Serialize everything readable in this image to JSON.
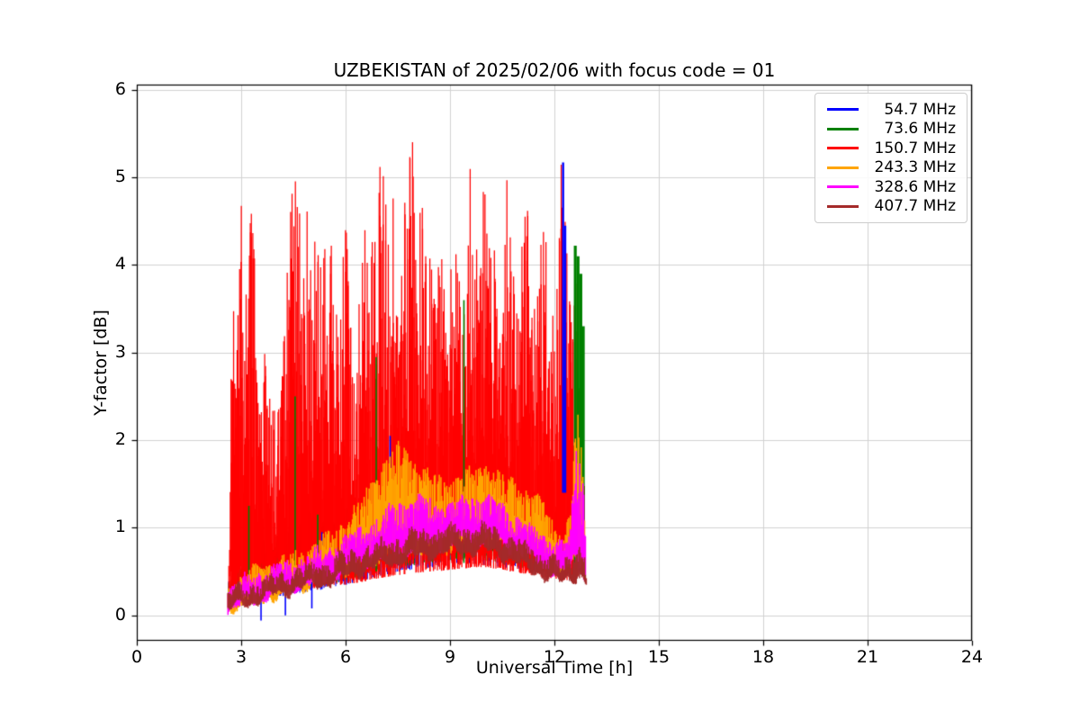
{
  "chart_data": {
    "type": "line",
    "title": "UZBEKISTAN of 2025/02/06 with focus code = 01",
    "xlabel": "Universal Time [h]",
    "ylabel": "Y-factor [dB]",
    "xlim": [
      0,
      24
    ],
    "ylim": [
      -0.29,
      6.06
    ],
    "xtick_values": [
      0,
      3,
      6,
      9,
      12,
      15,
      18,
      21,
      24
    ],
    "xtick_labels": [
      "0",
      "3",
      "6",
      "9",
      "12",
      "15",
      "18",
      "21",
      "24"
    ],
    "ytick_values": [
      0,
      1,
      2,
      3,
      4,
      5,
      6
    ],
    "ytick_labels": [
      "0",
      "1",
      "2",
      "3",
      "4",
      "5",
      "6"
    ],
    "grid": true,
    "grid_color": "#d2d2d2",
    "legend_position": "upper right",
    "signal_time_range_h": [
      2.65,
      12.9
    ],
    "series": [
      {
        "name": "54.7 MHz",
        "color": "#0000ff",
        "style": "mass",
        "envelope": [
          [
            2.65,
            0.08,
            0.4
          ],
          [
            3.5,
            0.15,
            0.7
          ],
          [
            4.5,
            0.25,
            1.0
          ],
          [
            5.5,
            0.3,
            1.1
          ],
          [
            6.5,
            0.4,
            1.3
          ],
          [
            7.5,
            0.5,
            1.45
          ],
          [
            8.5,
            0.55,
            1.5
          ],
          [
            9.5,
            0.6,
            1.5
          ],
          [
            10.5,
            0.55,
            1.4
          ],
          [
            11.5,
            0.5,
            1.2
          ],
          [
            12.3,
            0.45,
            1.1
          ],
          [
            12.85,
            0.5,
            1.5
          ]
        ],
        "visible_spikes": [
          [
            3.57,
            -0.06,
            0.38
          ],
          [
            4.27,
            0.0,
            0.5
          ],
          [
            5.03,
            0.08,
            0.62
          ],
          [
            5.32,
            0.3,
            0.95
          ],
          [
            7.28,
            1.6,
            2.05
          ],
          [
            12.25,
            1.4,
            5.17
          ],
          [
            12.31,
            1.4,
            4.45
          ]
        ]
      },
      {
        "name": "73.6 MHz",
        "color": "#008000",
        "style": "mass",
        "envelope": [
          [
            2.65,
            0.1,
            0.5
          ],
          [
            3.5,
            0.2,
            0.85
          ],
          [
            4.5,
            0.3,
            1.15
          ],
          [
            5.5,
            0.35,
            1.25
          ],
          [
            6.5,
            0.45,
            1.45
          ],
          [
            7.5,
            0.55,
            1.55
          ],
          [
            8.5,
            0.6,
            1.6
          ],
          [
            9.5,
            0.65,
            1.55
          ],
          [
            10.5,
            0.6,
            1.45
          ],
          [
            11.5,
            0.5,
            1.3
          ],
          [
            12.3,
            0.45,
            1.2
          ],
          [
            12.85,
            0.5,
            1.7
          ]
        ],
        "visible_spikes": [
          [
            3.22,
            0.3,
            1.25
          ],
          [
            4.55,
            0.4,
            2.5
          ],
          [
            5.2,
            0.35,
            1.15
          ],
          [
            6.88,
            0.5,
            2.95
          ],
          [
            9.4,
            0.6,
            3.6
          ],
          [
            12.6,
            0.55,
            4.22
          ],
          [
            12.68,
            0.55,
            4.1
          ],
          [
            12.76,
            0.5,
            3.9
          ],
          [
            12.83,
            0.5,
            3.3
          ]
        ]
      },
      {
        "name": "150.7 MHz",
        "color": "#ff0000",
        "style": "mass-dense",
        "envelope": [
          [
            2.65,
            0.08,
            0.6
          ],
          [
            2.72,
            0.1,
            3.95
          ],
          [
            2.85,
            0.1,
            2.9
          ],
          [
            3.0,
            0.12,
            4.95
          ],
          [
            3.15,
            0.13,
            4.3
          ],
          [
            3.3,
            0.15,
            4.9
          ],
          [
            3.45,
            0.17,
            3.6
          ],
          [
            3.6,
            0.18,
            2.7
          ],
          [
            3.75,
            0.2,
            3.45
          ],
          [
            3.9,
            0.22,
            2.35
          ],
          [
            4.1,
            0.24,
            2.4
          ],
          [
            4.25,
            0.26,
            3.6
          ],
          [
            4.4,
            0.27,
            4.65
          ],
          [
            4.55,
            0.28,
            5.3
          ],
          [
            4.7,
            0.29,
            4.6
          ],
          [
            4.85,
            0.3,
            5.05
          ],
          [
            5.0,
            0.3,
            4.45
          ],
          [
            5.1,
            0.31,
            5.25
          ],
          [
            5.25,
            0.32,
            4.2
          ],
          [
            5.4,
            0.33,
            4.8
          ],
          [
            5.55,
            0.34,
            4.5
          ],
          [
            5.7,
            0.34,
            3.1
          ],
          [
            5.85,
            0.35,
            4.2
          ],
          [
            6.0,
            0.35,
            4.85
          ],
          [
            6.15,
            0.36,
            3.4
          ],
          [
            6.3,
            0.37,
            2.6
          ],
          [
            6.45,
            0.38,
            4.3
          ],
          [
            6.6,
            0.39,
            4.9
          ],
          [
            6.75,
            0.41,
            4.4
          ],
          [
            6.9,
            0.42,
            4.6
          ],
          [
            7.05,
            0.43,
            5.6
          ],
          [
            7.2,
            0.44,
            4.4
          ],
          [
            7.35,
            0.45,
            4.95
          ],
          [
            7.5,
            0.46,
            4.4
          ],
          [
            7.65,
            0.47,
            4.55
          ],
          [
            7.9,
            0.48,
            5.77
          ],
          [
            8.0,
            0.48,
            4.6
          ],
          [
            8.15,
            0.49,
            5.05
          ],
          [
            8.3,
            0.5,
            4.4
          ],
          [
            8.45,
            0.5,
            4.2
          ],
          [
            8.6,
            0.51,
            3.6
          ],
          [
            8.75,
            0.51,
            4.5
          ],
          [
            8.9,
            0.52,
            3.4
          ],
          [
            9.05,
            0.52,
            4.3
          ],
          [
            9.2,
            0.53,
            4.45
          ],
          [
            9.35,
            0.53,
            3.4
          ],
          [
            9.5,
            0.54,
            4.3
          ],
          [
            9.62,
            0.54,
            5.42
          ],
          [
            9.75,
            0.55,
            4.5
          ],
          [
            9.9,
            0.55,
            5.0
          ],
          [
            10.05,
            0.55,
            5.4
          ],
          [
            10.2,
            0.54,
            4.4
          ],
          [
            10.35,
            0.53,
            4.0
          ],
          [
            10.5,
            0.52,
            3.6
          ],
          [
            10.62,
            0.51,
            5.18
          ],
          [
            10.75,
            0.5,
            4.3
          ],
          [
            10.9,
            0.49,
            3.6
          ],
          [
            11.05,
            0.48,
            4.3
          ],
          [
            11.18,
            0.47,
            5.2
          ],
          [
            11.35,
            0.46,
            3.5
          ],
          [
            11.5,
            0.45,
            4.0
          ],
          [
            11.65,
            0.44,
            4.5
          ],
          [
            11.8,
            0.43,
            4.6
          ],
          [
            11.95,
            0.42,
            3.4
          ],
          [
            12.1,
            0.41,
            4.1
          ],
          [
            12.22,
            0.4,
            5.61
          ],
          [
            12.35,
            0.4,
            4.4
          ],
          [
            12.5,
            0.42,
            3.5
          ],
          [
            12.62,
            0.44,
            4.0
          ],
          [
            12.72,
            0.45,
            3.5
          ],
          [
            12.8,
            0.46,
            3.3
          ],
          [
            12.86,
            0.47,
            1.2
          ]
        ],
        "visible_spikes": []
      },
      {
        "name": "243.3 MHz",
        "color": "#ffa500",
        "style": "band",
        "envelope": [
          [
            2.62,
            0.05,
            0.35
          ],
          [
            3.0,
            0.1,
            0.45
          ],
          [
            3.5,
            0.15,
            0.55
          ],
          [
            4.0,
            0.2,
            0.62
          ],
          [
            4.5,
            0.28,
            0.7
          ],
          [
            5.0,
            0.33,
            0.8
          ],
          [
            5.5,
            0.4,
            0.92
          ],
          [
            6.0,
            0.48,
            1.1
          ],
          [
            6.5,
            0.58,
            1.35
          ],
          [
            7.0,
            0.65,
            1.7
          ],
          [
            7.4,
            0.68,
            1.9
          ],
          [
            7.75,
            0.7,
            1.95
          ],
          [
            8.1,
            0.7,
            1.7
          ],
          [
            8.5,
            0.72,
            1.6
          ],
          [
            9.0,
            0.75,
            1.55
          ],
          [
            9.5,
            0.8,
            1.62
          ],
          [
            10.0,
            0.85,
            1.75
          ],
          [
            10.5,
            0.8,
            1.6
          ],
          [
            11.0,
            0.75,
            1.5
          ],
          [
            11.35,
            0.7,
            1.4
          ],
          [
            11.65,
            0.62,
            1.28
          ],
          [
            11.95,
            0.55,
            1.1
          ],
          [
            12.25,
            0.5,
            0.92
          ],
          [
            12.5,
            0.55,
            1.2
          ],
          [
            12.62,
            0.6,
            2.4
          ],
          [
            12.75,
            0.55,
            2.1
          ],
          [
            12.88,
            0.45,
            1.1
          ]
        ],
        "visible_spikes": []
      },
      {
        "name": "328.6 MHz",
        "color": "#ff00ff",
        "style": "band",
        "envelope": [
          [
            2.62,
            0.05,
            0.3
          ],
          [
            3.0,
            0.1,
            0.4
          ],
          [
            3.5,
            0.17,
            0.5
          ],
          [
            4.0,
            0.24,
            0.56
          ],
          [
            4.5,
            0.3,
            0.62
          ],
          [
            5.0,
            0.35,
            0.7
          ],
          [
            5.5,
            0.4,
            0.78
          ],
          [
            6.0,
            0.5,
            0.88
          ],
          [
            6.5,
            0.6,
            1.0
          ],
          [
            7.0,
            0.65,
            1.12
          ],
          [
            7.5,
            0.7,
            1.3
          ],
          [
            8.0,
            0.73,
            1.35
          ],
          [
            8.5,
            0.76,
            1.3
          ],
          [
            9.0,
            0.78,
            1.3
          ],
          [
            9.5,
            0.82,
            1.35
          ],
          [
            10.0,
            0.84,
            1.35
          ],
          [
            10.35,
            0.8,
            1.28
          ],
          [
            10.7,
            0.75,
            1.2
          ],
          [
            11.0,
            0.7,
            1.1
          ],
          [
            11.3,
            0.62,
            1.0
          ],
          [
            11.6,
            0.56,
            0.95
          ],
          [
            11.9,
            0.5,
            0.9
          ],
          [
            12.2,
            0.46,
            0.8
          ],
          [
            12.45,
            0.5,
            0.9
          ],
          [
            12.62,
            0.55,
            1.9
          ],
          [
            12.78,
            0.5,
            1.85
          ],
          [
            12.9,
            0.4,
            1.1
          ]
        ],
        "visible_spikes": []
      },
      {
        "name": "407.7 MHz",
        "color": "#a52a2a",
        "style": "band",
        "envelope": [
          [
            2.62,
            0.05,
            0.26
          ],
          [
            3.0,
            0.1,
            0.32
          ],
          [
            3.5,
            0.16,
            0.4
          ],
          [
            4.0,
            0.22,
            0.46
          ],
          [
            4.5,
            0.28,
            0.52
          ],
          [
            5.0,
            0.32,
            0.57
          ],
          [
            5.5,
            0.36,
            0.62
          ],
          [
            6.0,
            0.43,
            0.7
          ],
          [
            6.5,
            0.5,
            0.77
          ],
          [
            7.0,
            0.55,
            0.82
          ],
          [
            7.5,
            0.6,
            0.9
          ],
          [
            8.0,
            0.65,
            0.96
          ],
          [
            8.5,
            0.68,
            0.98
          ],
          [
            9.0,
            0.7,
            1.0
          ],
          [
            9.5,
            0.72,
            1.01
          ],
          [
            10.0,
            0.72,
            1.02
          ],
          [
            10.3,
            0.7,
            0.98
          ],
          [
            10.7,
            0.63,
            0.9
          ],
          [
            11.0,
            0.56,
            0.85
          ],
          [
            11.3,
            0.5,
            0.8
          ],
          [
            11.6,
            0.46,
            0.73
          ],
          [
            11.9,
            0.4,
            0.66
          ],
          [
            12.2,
            0.36,
            0.6
          ],
          [
            12.5,
            0.4,
            0.66
          ],
          [
            12.7,
            0.45,
            0.85
          ],
          [
            12.85,
            0.38,
            0.7
          ],
          [
            12.92,
            0.32,
            0.55
          ]
        ],
        "visible_spikes": []
      }
    ]
  }
}
